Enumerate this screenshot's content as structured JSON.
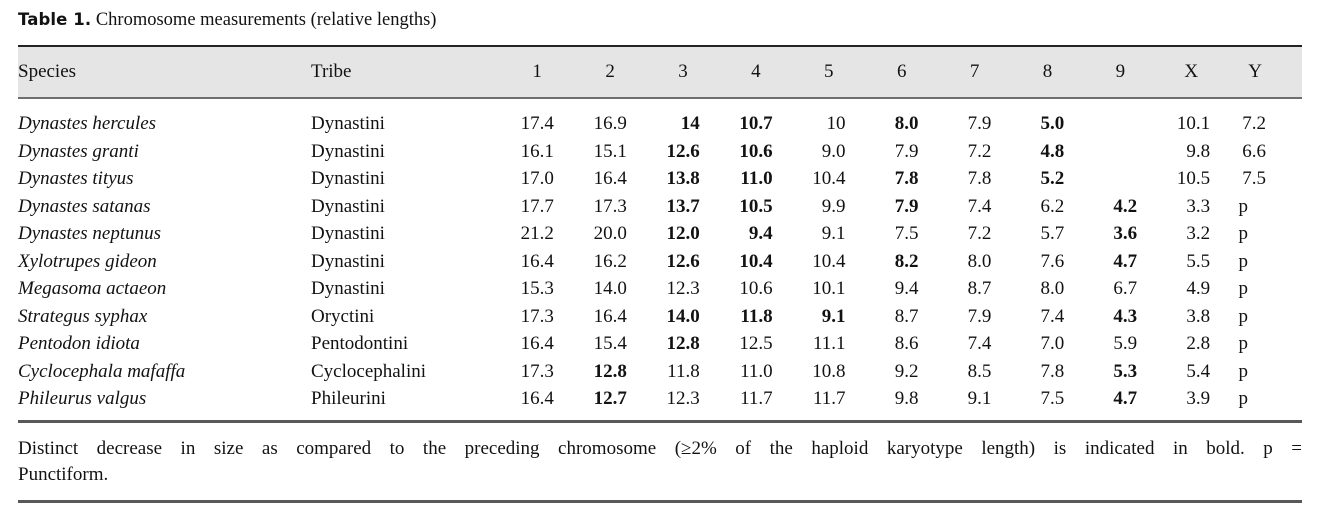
{
  "caption": {
    "label": "Table 1.",
    "text": "Chromosome measurements (relative lengths)"
  },
  "table": {
    "columns": [
      "Species",
      "Tribe",
      "1",
      "2",
      "3",
      "4",
      "5",
      "6",
      "7",
      "8",
      "9",
      "X",
      "Y"
    ],
    "rows": [
      {
        "species": "Dynastes hercules",
        "tribe": "Dynastini",
        "values": [
          {
            "v": "17.4"
          },
          {
            "v": "16.9"
          },
          {
            "v": "14",
            "b": true
          },
          {
            "v": "10.7",
            "b": true
          },
          {
            "v": "10"
          },
          {
            "v": "8.0",
            "b": true
          },
          {
            "v": "7.9"
          },
          {
            "v": "5.0",
            "b": true
          },
          {
            "v": ""
          },
          {
            "v": "10.1"
          },
          {
            "v": "7.2"
          }
        ]
      },
      {
        "species": "Dynastes granti",
        "tribe": "Dynastini",
        "values": [
          {
            "v": "16.1"
          },
          {
            "v": "15.1"
          },
          {
            "v": "12.6",
            "b": true
          },
          {
            "v": "10.6",
            "b": true
          },
          {
            "v": "9.0"
          },
          {
            "v": "7.9"
          },
          {
            "v": "7.2"
          },
          {
            "v": "4.8",
            "b": true
          },
          {
            "v": ""
          },
          {
            "v": "9.8"
          },
          {
            "v": "6.6"
          }
        ]
      },
      {
        "species": "Dynastes tityus",
        "tribe": "Dynastini",
        "values": [
          {
            "v": "17.0"
          },
          {
            "v": "16.4"
          },
          {
            "v": "13.8",
            "b": true
          },
          {
            "v": "11.0",
            "b": true
          },
          {
            "v": "10.4"
          },
          {
            "v": "7.8",
            "b": true
          },
          {
            "v": "7.8"
          },
          {
            "v": "5.2",
            "b": true
          },
          {
            "v": ""
          },
          {
            "v": "10.5"
          },
          {
            "v": "7.5"
          }
        ]
      },
      {
        "species": "Dynastes satanas",
        "tribe": "Dynastini",
        "values": [
          {
            "v": "17.7"
          },
          {
            "v": "17.3"
          },
          {
            "v": "13.7",
            "b": true
          },
          {
            "v": "10.5",
            "b": true
          },
          {
            "v": "9.9"
          },
          {
            "v": "7.9",
            "b": true
          },
          {
            "v": "7.4"
          },
          {
            "v": "6.2"
          },
          {
            "v": "4.2",
            "b": true
          },
          {
            "v": "3.3"
          },
          {
            "v": "p"
          }
        ]
      },
      {
        "species": "Dynastes neptunus",
        "tribe": "Dynastini",
        "values": [
          {
            "v": "21.2"
          },
          {
            "v": "20.0"
          },
          {
            "v": "12.0",
            "b": true
          },
          {
            "v": "9.4",
            "b": true
          },
          {
            "v": "9.1"
          },
          {
            "v": "7.5"
          },
          {
            "v": "7.2"
          },
          {
            "v": "5.7"
          },
          {
            "v": "3.6",
            "b": true
          },
          {
            "v": "3.2"
          },
          {
            "v": "p"
          }
        ]
      },
      {
        "species": "Xylotrupes gideon",
        "tribe": "Dynastini",
        "values": [
          {
            "v": "16.4"
          },
          {
            "v": "16.2"
          },
          {
            "v": "12.6",
            "b": true
          },
          {
            "v": "10.4",
            "b": true
          },
          {
            "v": "10.4"
          },
          {
            "v": "8.2",
            "b": true
          },
          {
            "v": "8.0"
          },
          {
            "v": "7.6"
          },
          {
            "v": "4.7",
            "b": true
          },
          {
            "v": "5.5"
          },
          {
            "v": "p"
          }
        ]
      },
      {
        "species": "Megasoma actaeon",
        "tribe": "Dynastini",
        "values": [
          {
            "v": "15.3"
          },
          {
            "v": "14.0"
          },
          {
            "v": "12.3"
          },
          {
            "v": "10.6"
          },
          {
            "v": "10.1"
          },
          {
            "v": "9.4"
          },
          {
            "v": "8.7"
          },
          {
            "v": "8.0"
          },
          {
            "v": "6.7"
          },
          {
            "v": "4.9"
          },
          {
            "v": "p"
          }
        ]
      },
      {
        "species": "Strategus syphax",
        "tribe": "Oryctini",
        "values": [
          {
            "v": "17.3"
          },
          {
            "v": "16.4"
          },
          {
            "v": "14.0",
            "b": true
          },
          {
            "v": "11.8",
            "b": true
          },
          {
            "v": "9.1",
            "b": true
          },
          {
            "v": "8.7"
          },
          {
            "v": "7.9"
          },
          {
            "v": "7.4"
          },
          {
            "v": "4.3",
            "b": true
          },
          {
            "v": "3.8"
          },
          {
            "v": "p"
          }
        ]
      },
      {
        "species": "Pentodon idiota",
        "tribe": "Pentodontini",
        "values": [
          {
            "v": "16.4"
          },
          {
            "v": "15.4"
          },
          {
            "v": "12.8",
            "b": true
          },
          {
            "v": "12.5"
          },
          {
            "v": "11.1"
          },
          {
            "v": "8.6"
          },
          {
            "v": "7.4"
          },
          {
            "v": "7.0"
          },
          {
            "v": "5.9"
          },
          {
            "v": "2.8"
          },
          {
            "v": "p"
          }
        ]
      },
      {
        "species": "Cyclocephala mafaffa",
        "tribe": "Cyclocephalini",
        "values": [
          {
            "v": "17.3"
          },
          {
            "v": "12.8",
            "b": true
          },
          {
            "v": "11.8"
          },
          {
            "v": "11.0"
          },
          {
            "v": "10.8"
          },
          {
            "v": "9.2"
          },
          {
            "v": "8.5"
          },
          {
            "v": "7.8"
          },
          {
            "v": "5.3",
            "b": true
          },
          {
            "v": "5.4"
          },
          {
            "v": "p"
          }
        ]
      },
      {
        "species": "Phileurus valgus",
        "tribe": "Phileurini",
        "values": [
          {
            "v": "16.4"
          },
          {
            "v": "12.7",
            "b": true
          },
          {
            "v": "12.3"
          },
          {
            "v": "11.7"
          },
          {
            "v": "11.7"
          },
          {
            "v": "9.8"
          },
          {
            "v": "9.1"
          },
          {
            "v": "7.5"
          },
          {
            "v": "4.7",
            "b": true
          },
          {
            "v": "3.9"
          },
          {
            "v": "p"
          }
        ]
      }
    ]
  },
  "footnote": {
    "line1": "Distinct decrease in size as compared to the preceding chromosome (≥2% of the haploid karyotype length) is indicated in bold. p =",
    "line2": "Punctiform."
  },
  "colors": {
    "header_band": "#e5e5e6",
    "rule_dark": "#242427",
    "rule_gray": "#59595c",
    "text": "#121212"
  }
}
